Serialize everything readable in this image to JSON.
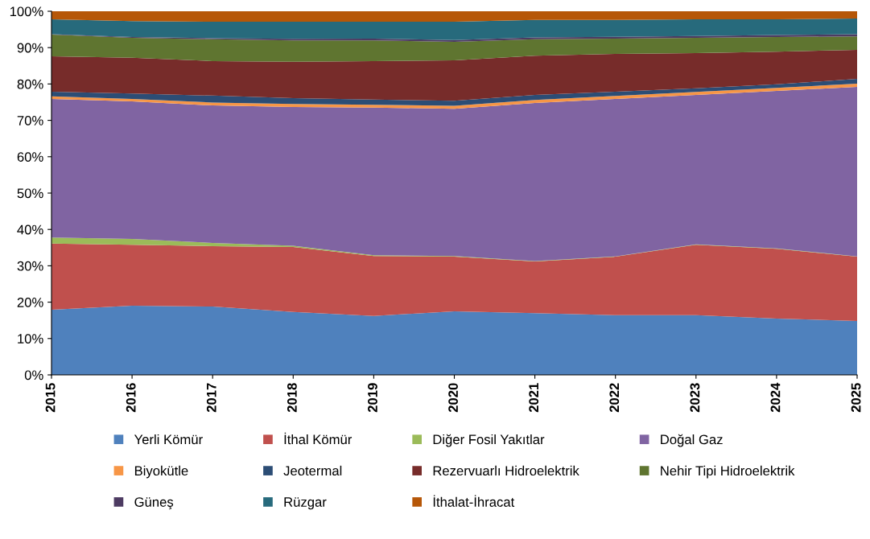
{
  "chart_data": {
    "type": "area",
    "stacked": true,
    "categories": [
      "2015",
      "2016",
      "2017",
      "2018",
      "2019",
      "2020",
      "2021",
      "2022",
      "2023",
      "2024",
      "2025"
    ],
    "series": [
      {
        "name": "Yerli Kömür",
        "color": "#4f81bd",
        "values": [
          17.9,
          19.0,
          18.8,
          17.3,
          16.2,
          17.5,
          17.0,
          16.4,
          16.4,
          15.5,
          14.8
        ]
      },
      {
        "name": "İthal Kömür",
        "color": "#c0504d",
        "values": [
          18.2,
          16.8,
          16.6,
          17.9,
          16.5,
          15.0,
          14.2,
          16.1,
          19.4,
          19.2,
          17.7
        ]
      },
      {
        "name": "Diğer Fosil Yakıtlar",
        "color": "#9bbb59",
        "values": [
          1.7,
          1.6,
          0.9,
          0.3,
          0.2,
          0.2,
          0.1,
          0.1,
          0.1,
          0.1,
          0.1
        ]
      },
      {
        "name": "Doğal Gaz",
        "color": "#8064a2",
        "values": [
          38.1,
          37.8,
          37.8,
          38.2,
          40.6,
          40.5,
          43.5,
          43.3,
          41.1,
          43.3,
          46.6
        ]
      },
      {
        "name": "Biyokütle",
        "color": "#f79646",
        "values": [
          0.7,
          0.7,
          0.8,
          0.8,
          0.8,
          0.8,
          0.8,
          0.8,
          0.8,
          0.8,
          0.9
        ]
      },
      {
        "name": "Jeotermal",
        "color": "#2c4d75",
        "values": [
          1.3,
          1.5,
          1.9,
          1.6,
          1.4,
          1.4,
          1.4,
          1.2,
          1.0,
          1.0,
          1.3
        ]
      },
      {
        "name": "Rezervuarlı Hidroelektrik",
        "color": "#772c2a",
        "values": [
          9.7,
          9.8,
          9.5,
          10.0,
          10.6,
          11.1,
          10.8,
          10.4,
          9.7,
          9.0,
          8.0
        ]
      },
      {
        "name": "Nehir Tipi Hidroelektrik",
        "color": "#5f7530",
        "values": [
          6.0,
          5.5,
          6.0,
          5.9,
          5.7,
          5.1,
          4.5,
          4.2,
          4.2,
          4.0,
          3.7
        ]
      },
      {
        "name": "Güneş",
        "color": "#4d3b62",
        "values": [
          0.1,
          0.2,
          0.3,
          0.4,
          0.5,
          0.5,
          0.5,
          0.5,
          0.5,
          0.6,
          0.6
        ]
      },
      {
        "name": "Rüzgar",
        "color": "#276a7c",
        "values": [
          4.1,
          4.4,
          4.5,
          4.7,
          4.6,
          5.0,
          4.8,
          4.6,
          4.6,
          4.3,
          4.3
        ]
      },
      {
        "name": "İthalat-İhracat",
        "color": "#b65708",
        "values": [
          2.2,
          2.7,
          2.9,
          2.9,
          2.9,
          2.9,
          2.4,
          2.4,
          2.2,
          2.2,
          2.0
        ]
      }
    ],
    "ylim": [
      0,
      100
    ],
    "yticks": [
      {
        "value": 0,
        "label": "0%"
      },
      {
        "value": 10,
        "label": "10%"
      },
      {
        "value": 20,
        "label": "20%"
      },
      {
        "value": 30,
        "label": "30%"
      },
      {
        "value": 40,
        "label": "40%"
      },
      {
        "value": 50,
        "label": "50%"
      },
      {
        "value": 60,
        "label": "60%"
      },
      {
        "value": 70,
        "label": "70%"
      },
      {
        "value": 80,
        "label": "80%"
      },
      {
        "value": 90,
        "label": "90%"
      },
      {
        "value": 100,
        "label": "100%"
      }
    ],
    "grid": false,
    "legend": "bottom"
  }
}
